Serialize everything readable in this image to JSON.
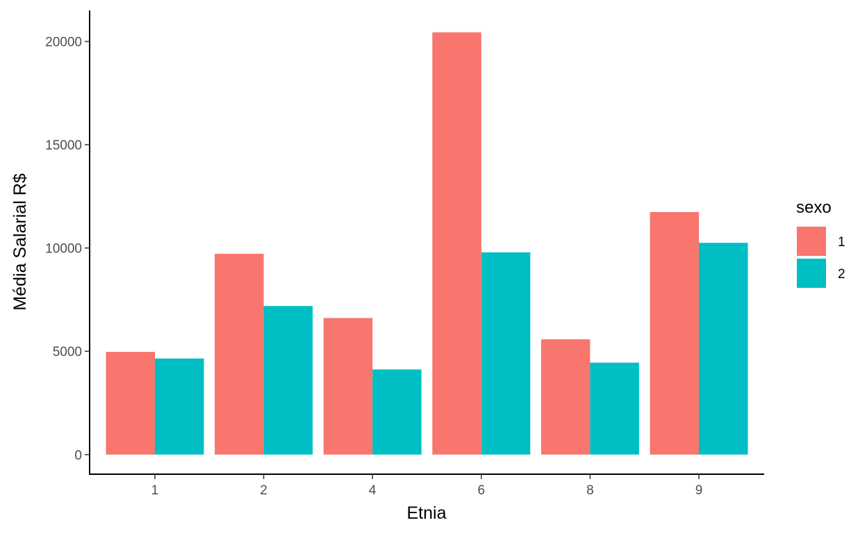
{
  "chart_data": {
    "type": "bar",
    "title": "",
    "xlabel": "Etnia",
    "ylabel": "Média Salarial R$",
    "categories": [
      "1",
      "2",
      "4",
      "6",
      "8",
      "9"
    ],
    "series": [
      {
        "name": "1",
        "color": "#F8766D",
        "values": [
          4970,
          9720,
          6610,
          20440,
          5580,
          11740
        ]
      },
      {
        "name": "2",
        "color": "#00BFC4",
        "values": [
          4650,
          7190,
          4120,
          9790,
          4450,
          10250
        ]
      }
    ],
    "yticks": [
      0,
      5000,
      10000,
      15000,
      20000
    ],
    "ylim": [
      -950,
      21500
    ],
    "grid": false,
    "legend": {
      "title": "sexo",
      "position": "right"
    }
  }
}
